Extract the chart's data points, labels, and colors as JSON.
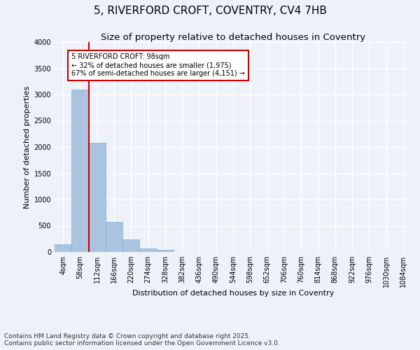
{
  "title_line1": "5, RIVERFORD CROFT, COVENTRY, CV4 7HB",
  "title_line2": "Size of property relative to detached houses in Coventry",
  "xlabel": "Distribution of detached houses by size in Coventry",
  "ylabel": "Number of detached properties",
  "bar_labels": [
    "4sqm",
    "58sqm",
    "112sqm",
    "166sqm",
    "220sqm",
    "274sqm",
    "328sqm",
    "382sqm",
    "436sqm",
    "490sqm",
    "544sqm",
    "598sqm",
    "652sqm",
    "706sqm",
    "760sqm",
    "814sqm",
    "868sqm",
    "922sqm",
    "976sqm",
    "1030sqm",
    "1084sqm"
  ],
  "bar_values": [
    150,
    3100,
    2080,
    570,
    240,
    65,
    40,
    5,
    0,
    0,
    0,
    0,
    0,
    0,
    0,
    0,
    0,
    0,
    0,
    0,
    0
  ],
  "bar_color": "#aac4e0",
  "bar_edgecolor": "#7aafd4",
  "ylim": [
    0,
    4000
  ],
  "yticks": [
    0,
    500,
    1000,
    1500,
    2000,
    2500,
    3000,
    3500,
    4000
  ],
  "property_line_x": 1.5,
  "annotation_title": "5 RIVERFORD CROFT: 98sqm",
  "annotation_line1": "← 32% of detached houses are smaller (1,975)",
  "annotation_line2": "67% of semi-detached houses are larger (4,151) →",
  "annotation_box_color": "#ffffff",
  "annotation_box_edgecolor": "#cc0000",
  "vline_color": "#cc0000",
  "background_color": "#eef2f8",
  "footer_line1": "Contains HM Land Registry data © Crown copyright and database right 2025.",
  "footer_line2": "Contains public sector information licensed under the Open Government Licence v3.0.",
  "grid_color": "#ffffff",
  "title_fontsize": 11,
  "subtitle_fontsize": 9.5,
  "axis_label_fontsize": 8,
  "tick_fontsize": 7,
  "annotation_fontsize": 7,
  "footer_fontsize": 6.5
}
